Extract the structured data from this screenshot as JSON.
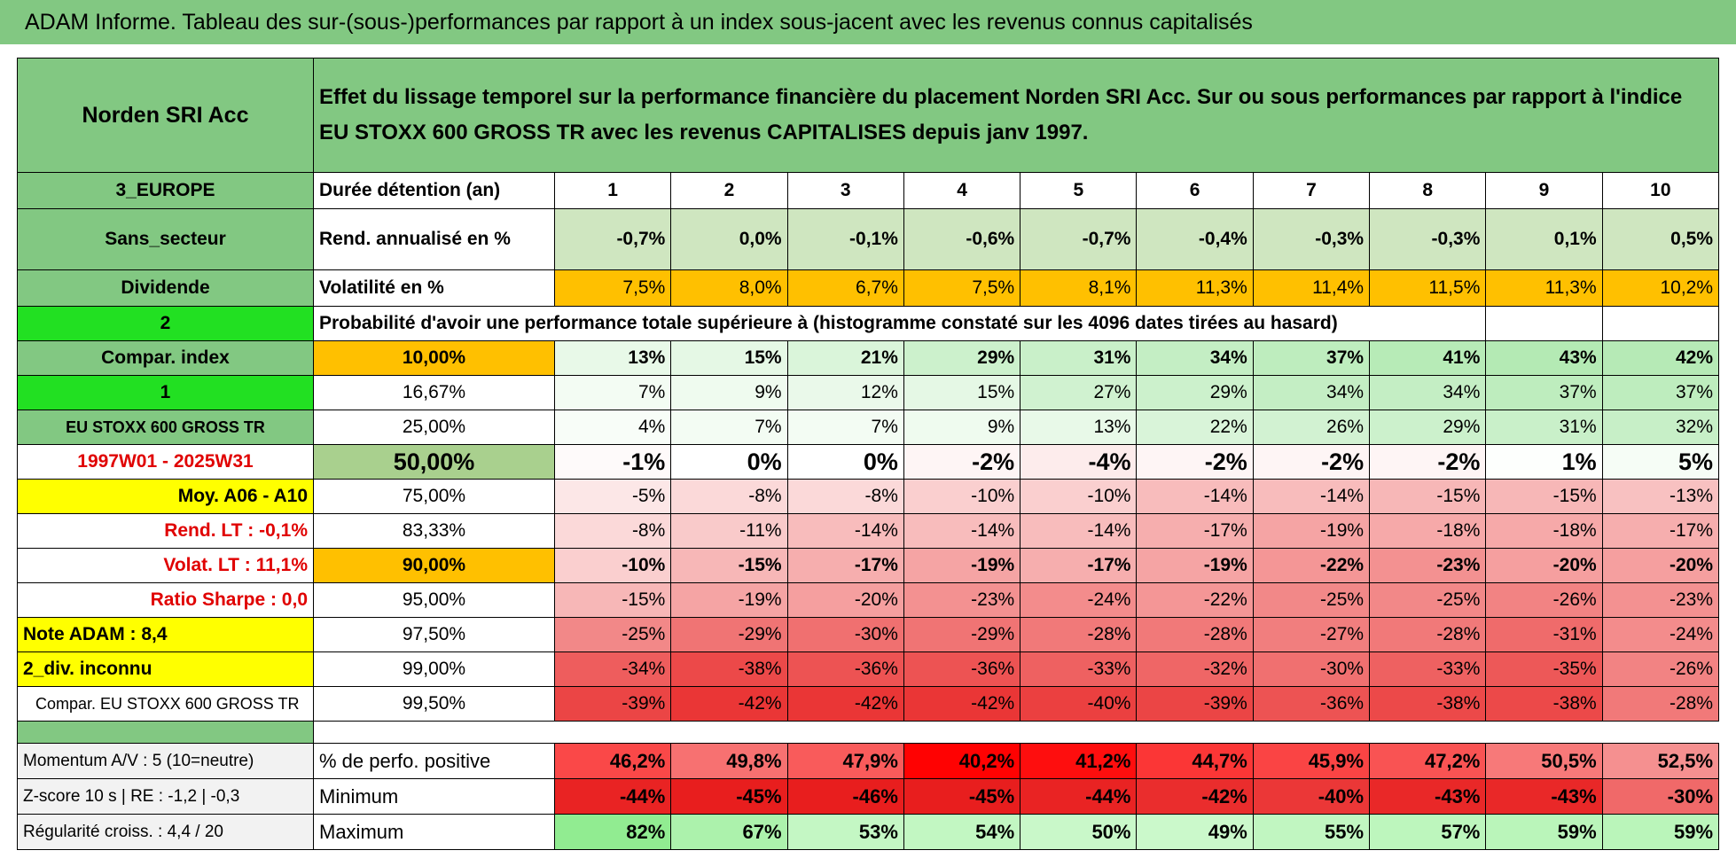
{
  "title": "ADAM Informe. Tableau des sur-(sous-)performances par rapport à un index sous-jacent avec les revenus connus capitalisés",
  "fund": "Norden SRI Acc",
  "description": "Effet du lissage temporel sur la performance financière du placement Norden SRI Acc. Sur ou sous performances par rapport à l'indice EU STOXX 600 GROSS TR avec les revenus CAPITALISES depuis janv 1997.",
  "rows": [
    {
      "left": "3_EUROPE",
      "label": "Durée détention (an)",
      "values": [
        1,
        2,
        3,
        4,
        5,
        6,
        7,
        8,
        9,
        10
      ]
    },
    {
      "left": "Sans_secteur",
      "label": "Rend. annualisé en %",
      "values": [
        "-0,7%",
        "0,0%",
        "-0,1%",
        "-0,6%",
        "-0,7%",
        "-0,4%",
        "-0,3%",
        "-0,3%",
        "0,1%",
        "0,5%"
      ]
    },
    {
      "left": "Dividende",
      "label": "Volatilité en %",
      "values": [
        "7,5%",
        "8,0%",
        "6,7%",
        "7,5%",
        "8,1%",
        "11,3%",
        "11,4%",
        "11,5%",
        "11,3%",
        "10,2%"
      ]
    },
    {
      "left": "2",
      "label": "Probabilité d'avoir une performance totale supérieure à (histogramme constaté sur les 4096 dates tirées au hasard)"
    },
    {
      "left": "Compar. index",
      "label": "10,00%",
      "values": [
        "13%",
        "15%",
        "21%",
        "29%",
        "31%",
        "34%",
        "37%",
        "41%",
        "43%",
        "42%"
      ]
    },
    {
      "left": "1",
      "label": "16,67%",
      "values": [
        "7%",
        "9%",
        "12%",
        "15%",
        "27%",
        "29%",
        "34%",
        "34%",
        "37%",
        "37%"
      ]
    },
    {
      "left": "EU STOXX 600 GROSS TR",
      "label": "25,00%",
      "values": [
        "4%",
        "7%",
        "7%",
        "9%",
        "13%",
        "22%",
        "26%",
        "29%",
        "31%",
        "32%"
      ]
    },
    {
      "left": "1997W01 - 2025W31",
      "label": "50,00%",
      "values": [
        "-1%",
        "0%",
        "0%",
        "-2%",
        "-4%",
        "-2%",
        "-2%",
        "-2%",
        "1%",
        "5%"
      ]
    },
    {
      "left": "Moy. A06 - A10",
      "label": "75,00%",
      "values": [
        "-5%",
        "-8%",
        "-8%",
        "-10%",
        "-10%",
        "-14%",
        "-14%",
        "-15%",
        "-15%",
        "-13%"
      ]
    },
    {
      "left": "Rend. LT :    -0,1%",
      "label": "83,33%",
      "values": [
        "-8%",
        "-11%",
        "-14%",
        "-14%",
        "-14%",
        "-17%",
        "-19%",
        "-18%",
        "-18%",
        "-17%"
      ]
    },
    {
      "left": "Volat. LT :    11,1%",
      "label": "90,00%",
      "values": [
        "-10%",
        "-15%",
        "-17%",
        "-19%",
        "-17%",
        "-19%",
        "-22%",
        "-23%",
        "-20%",
        "-20%"
      ]
    },
    {
      "left": "Ratio Sharpe :    0,0",
      "label": "95,00%",
      "values": [
        "-15%",
        "-19%",
        "-20%",
        "-23%",
        "-24%",
        "-22%",
        "-25%",
        "-25%",
        "-26%",
        "-23%"
      ]
    },
    {
      "left": "Note ADAM : 8,4",
      "label": "97,50%",
      "values": [
        "-25%",
        "-29%",
        "-30%",
        "-29%",
        "-28%",
        "-28%",
        "-27%",
        "-28%",
        "-31%",
        "-24%"
      ]
    },
    {
      "left": "2_div. inconnu",
      "label": "99,00%",
      "values": [
        "-34%",
        "-38%",
        "-36%",
        "-36%",
        "-33%",
        "-32%",
        "-30%",
        "-33%",
        "-35%",
        "-26%"
      ]
    },
    {
      "left": "Compar. EU STOXX 600 GROSS TR",
      "label": "99,50%",
      "values": [
        "-39%",
        "-42%",
        "-42%",
        "-42%",
        "-40%",
        "-39%",
        "-36%",
        "-38%",
        "-38%",
        "-28%"
      ]
    }
  ],
  "stats": [
    {
      "left": "Momentum A/V : 5 (10=neutre)",
      "label": "% de perfo. positive",
      "values": [
        "46,2%",
        "49,8%",
        "47,9%",
        "40,2%",
        "41,2%",
        "44,7%",
        "45,9%",
        "47,2%",
        "50,5%",
        "52,5%"
      ]
    },
    {
      "left": "Z-score 10 s | RE : -1,2 | -0,3",
      "label": "Minimum",
      "values": [
        "-44%",
        "-45%",
        "-46%",
        "-45%",
        "-44%",
        "-42%",
        "-40%",
        "-43%",
        "-43%",
        "-30%"
      ]
    },
    {
      "left": "Régularité croiss. : 4,4 / 20",
      "label": "Maximum",
      "values": [
        "82%",
        "67%",
        "53%",
        "54%",
        "50%",
        "49%",
        "55%",
        "57%",
        "59%",
        "59%"
      ]
    }
  ]
}
